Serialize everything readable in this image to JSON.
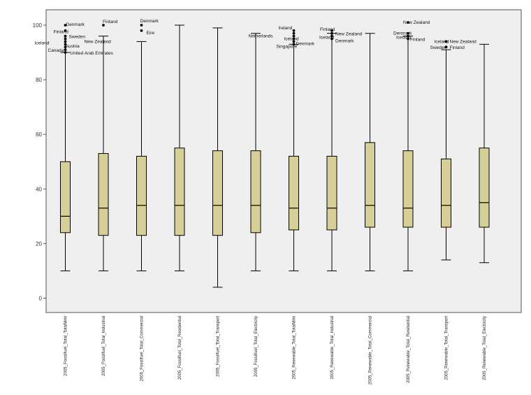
{
  "chart_data": {
    "type": "boxplot",
    "title": "",
    "xlabel": "",
    "ylabel": "",
    "ylim": [
      -5,
      105
    ],
    "yticks": [
      0,
      20,
      40,
      60,
      80,
      100
    ],
    "grid": false,
    "categories": [
      "2005_Fossilfuel_Total_TotalMrkt",
      "2005_Fossilfuel_Total_Industrial",
      "2005_Fossilfuel_Total_Commercial",
      "2005_Fossilfuel_Total_Residential",
      "2005_Fossilfuel_Total_Transport",
      "2005_Fossilfuel_Total_Electricity",
      "2005_Renewable_Total_TotalMrkt",
      "2005_Renewable_Total_Industrial",
      "2005_Renewable_Total_Commercial",
      "2005_Renewable_Total_Residential",
      "2005_Renewable_Total_Transport",
      "2005_Renewable_Total_Electricity"
    ],
    "boxes": [
      {
        "min": 10,
        "q1": 24,
        "median": 30,
        "q3": 50,
        "max": 90
      },
      {
        "min": 10,
        "q1": 23,
        "median": 33,
        "q3": 53,
        "max": 96
      },
      {
        "min": 10,
        "q1": 23,
        "median": 34,
        "q3": 52,
        "max": 94
      },
      {
        "min": 10,
        "q1": 23,
        "median": 34,
        "q3": 55,
        "max": 100
      },
      {
        "min": 4,
        "q1": 23,
        "median": 34,
        "q3": 54,
        "max": 99
      },
      {
        "min": 10,
        "q1": 24,
        "median": 34,
        "q3": 54,
        "max": 97
      },
      {
        "min": 10,
        "q1": 25,
        "median": 33,
        "q3": 52,
        "max": 93
      },
      {
        "min": 10,
        "q1": 25,
        "median": 33,
        "q3": 52,
        "max": 97
      },
      {
        "min": 10,
        "q1": 26,
        "median": 34,
        "q3": 57,
        "max": 97
      },
      {
        "min": 10,
        "q1": 26,
        "median": 33,
        "q3": 54,
        "max": 96
      },
      {
        "min": 14,
        "q1": 26,
        "median": 34,
        "q3": 51,
        "max": 91
      },
      {
        "min": 13,
        "q1": 26,
        "median": 35,
        "q3": 55,
        "max": 93
      }
    ],
    "outliers": [
      {
        "box": 0,
        "value": 100,
        "label": "Denmark",
        "align": "right",
        "dx": -3,
        "dy": -1
      },
      {
        "box": 0,
        "value": 98,
        "label": "",
        "align": "left",
        "dx": 0,
        "dy": 0
      },
      {
        "box": 0,
        "value": 96,
        "label": "Finland",
        "align": "left",
        "dx": -21,
        "dy": -6
      },
      {
        "box": 0,
        "value": 95,
        "label": "Sweden",
        "align": "right",
        "dx": 1,
        "dy": -3
      },
      {
        "box": 0,
        "value": 94,
        "label": "New Zealand",
        "align": "right",
        "dx": 23,
        "dy": 0
      },
      {
        "box": 0,
        "value": 93,
        "label": "Iceland",
        "align": "left",
        "dx": -48,
        "dy": -2
      },
      {
        "box": 0,
        "value": 92,
        "label": "Austria",
        "align": "right",
        "dx": -4,
        "dy": -1
      },
      {
        "box": 0,
        "value": 91,
        "label": "Canada",
        "align": "left",
        "dx": -29,
        "dy": 1
      },
      {
        "box": 0,
        "value": 90,
        "label": "United Arab Emirates",
        "align": "right",
        "dx": 3,
        "dy": 1
      },
      {
        "box": 1,
        "value": 100,
        "label": "Finland",
        "align": "right",
        "dx": -5,
        "dy": -5
      },
      {
        "box": 2,
        "value": 100,
        "label": "Denmark",
        "align": "right",
        "dx": -6,
        "dy": -6
      },
      {
        "box": 2,
        "value": 98,
        "label": "Eire",
        "align": "right",
        "dx": 3,
        "dy": 3
      },
      {
        "box": 6,
        "value": 98,
        "label": "Ireland",
        "align": "left",
        "dx": -26,
        "dy": -4
      },
      {
        "box": 6,
        "value": 97,
        "label": "",
        "align": "left",
        "dx": 0,
        "dy": 0
      },
      {
        "box": 6,
        "value": 96,
        "label": "Netherlands",
        "align": "right",
        "dx": -69,
        "dy": 0
      },
      {
        "box": 6,
        "value": 95,
        "label": "Iceland",
        "align": "right",
        "dx": -18,
        "dy": 0
      },
      {
        "box": 6,
        "value": 94,
        "label": "Denmark",
        "align": "right",
        "dx": -1,
        "dy": 3
      },
      {
        "box": 6,
        "value": 93,
        "label": "Singapore",
        "align": "left",
        "dx": -29,
        "dy": 3
      },
      {
        "box": 7,
        "value": 98,
        "label": "Finland",
        "align": "left",
        "dx": -21,
        "dy": -2
      },
      {
        "box": 7,
        "value": 97,
        "label": "New Zealand",
        "align": "right",
        "dx": 1,
        "dy": 1
      },
      {
        "box": 7,
        "value": 96,
        "label": "Iceland",
        "align": "left",
        "dx": -22,
        "dy": 2
      },
      {
        "box": 7,
        "value": 95,
        "label": "Denmark",
        "align": "right",
        "dx": 1,
        "dy": 3
      },
      {
        "box": 9,
        "value": 101,
        "label": "New Zealand",
        "align": "right",
        "dx": -11,
        "dy": 0
      },
      {
        "box": 9,
        "value": 97,
        "label": "Denmark",
        "align": "left",
        "dx": -25,
        "dy": 0
      },
      {
        "box": 9,
        "value": 96,
        "label": "Iceland",
        "align": "left",
        "dx": -21,
        "dy": 2
      },
      {
        "box": 9,
        "value": 95,
        "label": "Finland",
        "align": "right",
        "dx": -1,
        "dy": 1
      },
      {
        "box": 10,
        "value": 94,
        "label": "Iceland",
        "align": "left",
        "dx": -21,
        "dy": 0
      },
      {
        "box": 10,
        "value": 94,
        "label": "New Zealand",
        "align": "right",
        "dx": 1,
        "dy": 0
      },
      {
        "box": 10,
        "value": 92,
        "label": "Sweden",
        "align": "left",
        "dx": -27,
        "dy": 1
      },
      {
        "box": 10,
        "value": 92,
        "label": "Finland",
        "align": "right",
        "dx": 1,
        "dy": 1
      }
    ],
    "colors": {
      "plot_background": "#efefef",
      "box_fill": "#d6cf98",
      "line": "#000000",
      "frame": "#555555"
    }
  }
}
